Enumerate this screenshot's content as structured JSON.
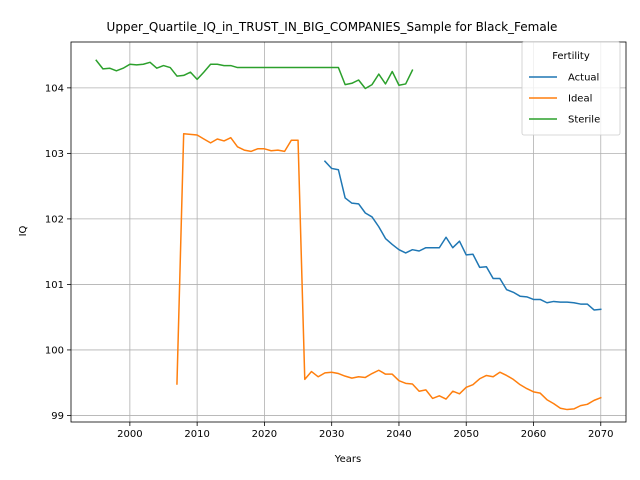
{
  "chart_data": {
    "type": "line",
    "title": "Upper_Quartile_IQ_in_TRUST_IN_BIG_COMPANIES_Sample for Black_Female",
    "xlabel": "Years",
    "ylabel": "IQ",
    "xlim": [
      1991.25,
      2073.75
    ],
    "ylim": [
      98.9,
      104.7
    ],
    "xticks": [
      2000,
      2010,
      2020,
      2030,
      2040,
      2050,
      2060,
      2070
    ],
    "yticks": [
      99,
      100,
      101,
      102,
      103,
      104
    ],
    "grid": true,
    "legend": {
      "title": "Fertility",
      "placement": "top-right"
    },
    "series": [
      {
        "name": "Actual",
        "color": "#1f77b4",
        "x": [
          2029,
          2030,
          2031,
          2032,
          2033,
          2034,
          2035,
          2036,
          2037,
          2038,
          2039,
          2040,
          2041,
          2042,
          2043,
          2044,
          2045,
          2046,
          2047,
          2048,
          2049,
          2050,
          2051,
          2052,
          2053,
          2054,
          2055,
          2056,
          2057,
          2058,
          2059,
          2060,
          2061,
          2062,
          2063,
          2064,
          2065,
          2066,
          2067,
          2068,
          2069,
          2070
        ],
        "y": [
          102.88,
          102.77,
          102.75,
          102.32,
          102.24,
          102.23,
          102.09,
          102.03,
          101.88,
          101.7,
          101.61,
          101.53,
          101.48,
          101.53,
          101.51,
          101.56,
          101.56,
          101.56,
          101.72,
          101.56,
          101.66,
          101.45,
          101.46,
          101.26,
          101.27,
          101.09,
          101.09,
          100.92,
          100.88,
          100.82,
          100.81,
          100.77,
          100.77,
          100.72,
          100.74,
          100.73,
          100.73,
          100.72,
          100.7,
          100.7,
          100.61,
          100.62
        ]
      },
      {
        "name": "Ideal",
        "color": "#ff7f0e",
        "x": [
          2007,
          2008,
          2009,
          2010,
          2011,
          2012,
          2013,
          2014,
          2015,
          2016,
          2017,
          2018,
          2019,
          2020,
          2021,
          2022,
          2023,
          2024,
          2025,
          2026,
          2027,
          2028,
          2029,
          2030,
          2031,
          2032,
          2033,
          2034,
          2035,
          2036,
          2037,
          2038,
          2039,
          2040,
          2041,
          2042,
          2043,
          2044,
          2045,
          2046,
          2047,
          2048,
          2049,
          2050,
          2051,
          2052,
          2053,
          2054,
          2055,
          2056,
          2057,
          2058,
          2059,
          2060,
          2061,
          2062,
          2063,
          2064,
          2065,
          2066,
          2067,
          2068,
          2069,
          2070
        ],
        "y": [
          99.48,
          103.3,
          103.29,
          103.28,
          103.22,
          103.16,
          103.22,
          103.19,
          103.24,
          103.1,
          103.05,
          103.03,
          103.07,
          103.07,
          103.04,
          103.05,
          103.03,
          103.2,
          103.2,
          99.55,
          99.67,
          99.59,
          99.65,
          99.66,
          99.64,
          99.6,
          99.57,
          99.59,
          99.58,
          99.64,
          99.69,
          99.63,
          99.63,
          99.53,
          99.49,
          99.48,
          99.37,
          99.39,
          99.26,
          99.3,
          99.25,
          99.37,
          99.33,
          99.43,
          99.47,
          99.56,
          99.61,
          99.59,
          99.66,
          99.61,
          99.55,
          99.47,
          99.41,
          99.36,
          99.34,
          99.24,
          99.18,
          99.11,
          99.09,
          99.1,
          99.15,
          99.17,
          99.23,
          99.27
        ]
      },
      {
        "name": "Sterile",
        "color": "#2ca02c",
        "x": [
          1995,
          1996,
          1997,
          1998,
          1999,
          2000,
          2001,
          2002,
          2003,
          2004,
          2005,
          2006,
          2007,
          2008,
          2009,
          2010,
          2011,
          2012,
          2013,
          2014,
          2015,
          2016,
          2017,
          2018,
          2019,
          2020,
          2021,
          2022,
          2023,
          2024,
          2025,
          2026,
          2027,
          2028,
          2029,
          2030,
          2031,
          2032,
          2033,
          2034,
          2035,
          2036,
          2037,
          2038,
          2039,
          2040,
          2041,
          2042
        ],
        "y": [
          104.42,
          104.29,
          104.3,
          104.26,
          104.3,
          104.36,
          104.35,
          104.36,
          104.39,
          104.3,
          104.34,
          104.31,
          104.18,
          104.19,
          104.24,
          104.13,
          104.24,
          104.36,
          104.36,
          104.34,
          104.34,
          104.31,
          104.31,
          104.31,
          104.31,
          104.31,
          104.31,
          104.31,
          104.31,
          104.31,
          104.31,
          104.31,
          104.31,
          104.31,
          104.31,
          104.31,
          104.31,
          104.05,
          104.07,
          104.12,
          103.99,
          104.05,
          104.21,
          104.06,
          104.25,
          104.04,
          104.06,
          104.27
        ]
      }
    ]
  }
}
